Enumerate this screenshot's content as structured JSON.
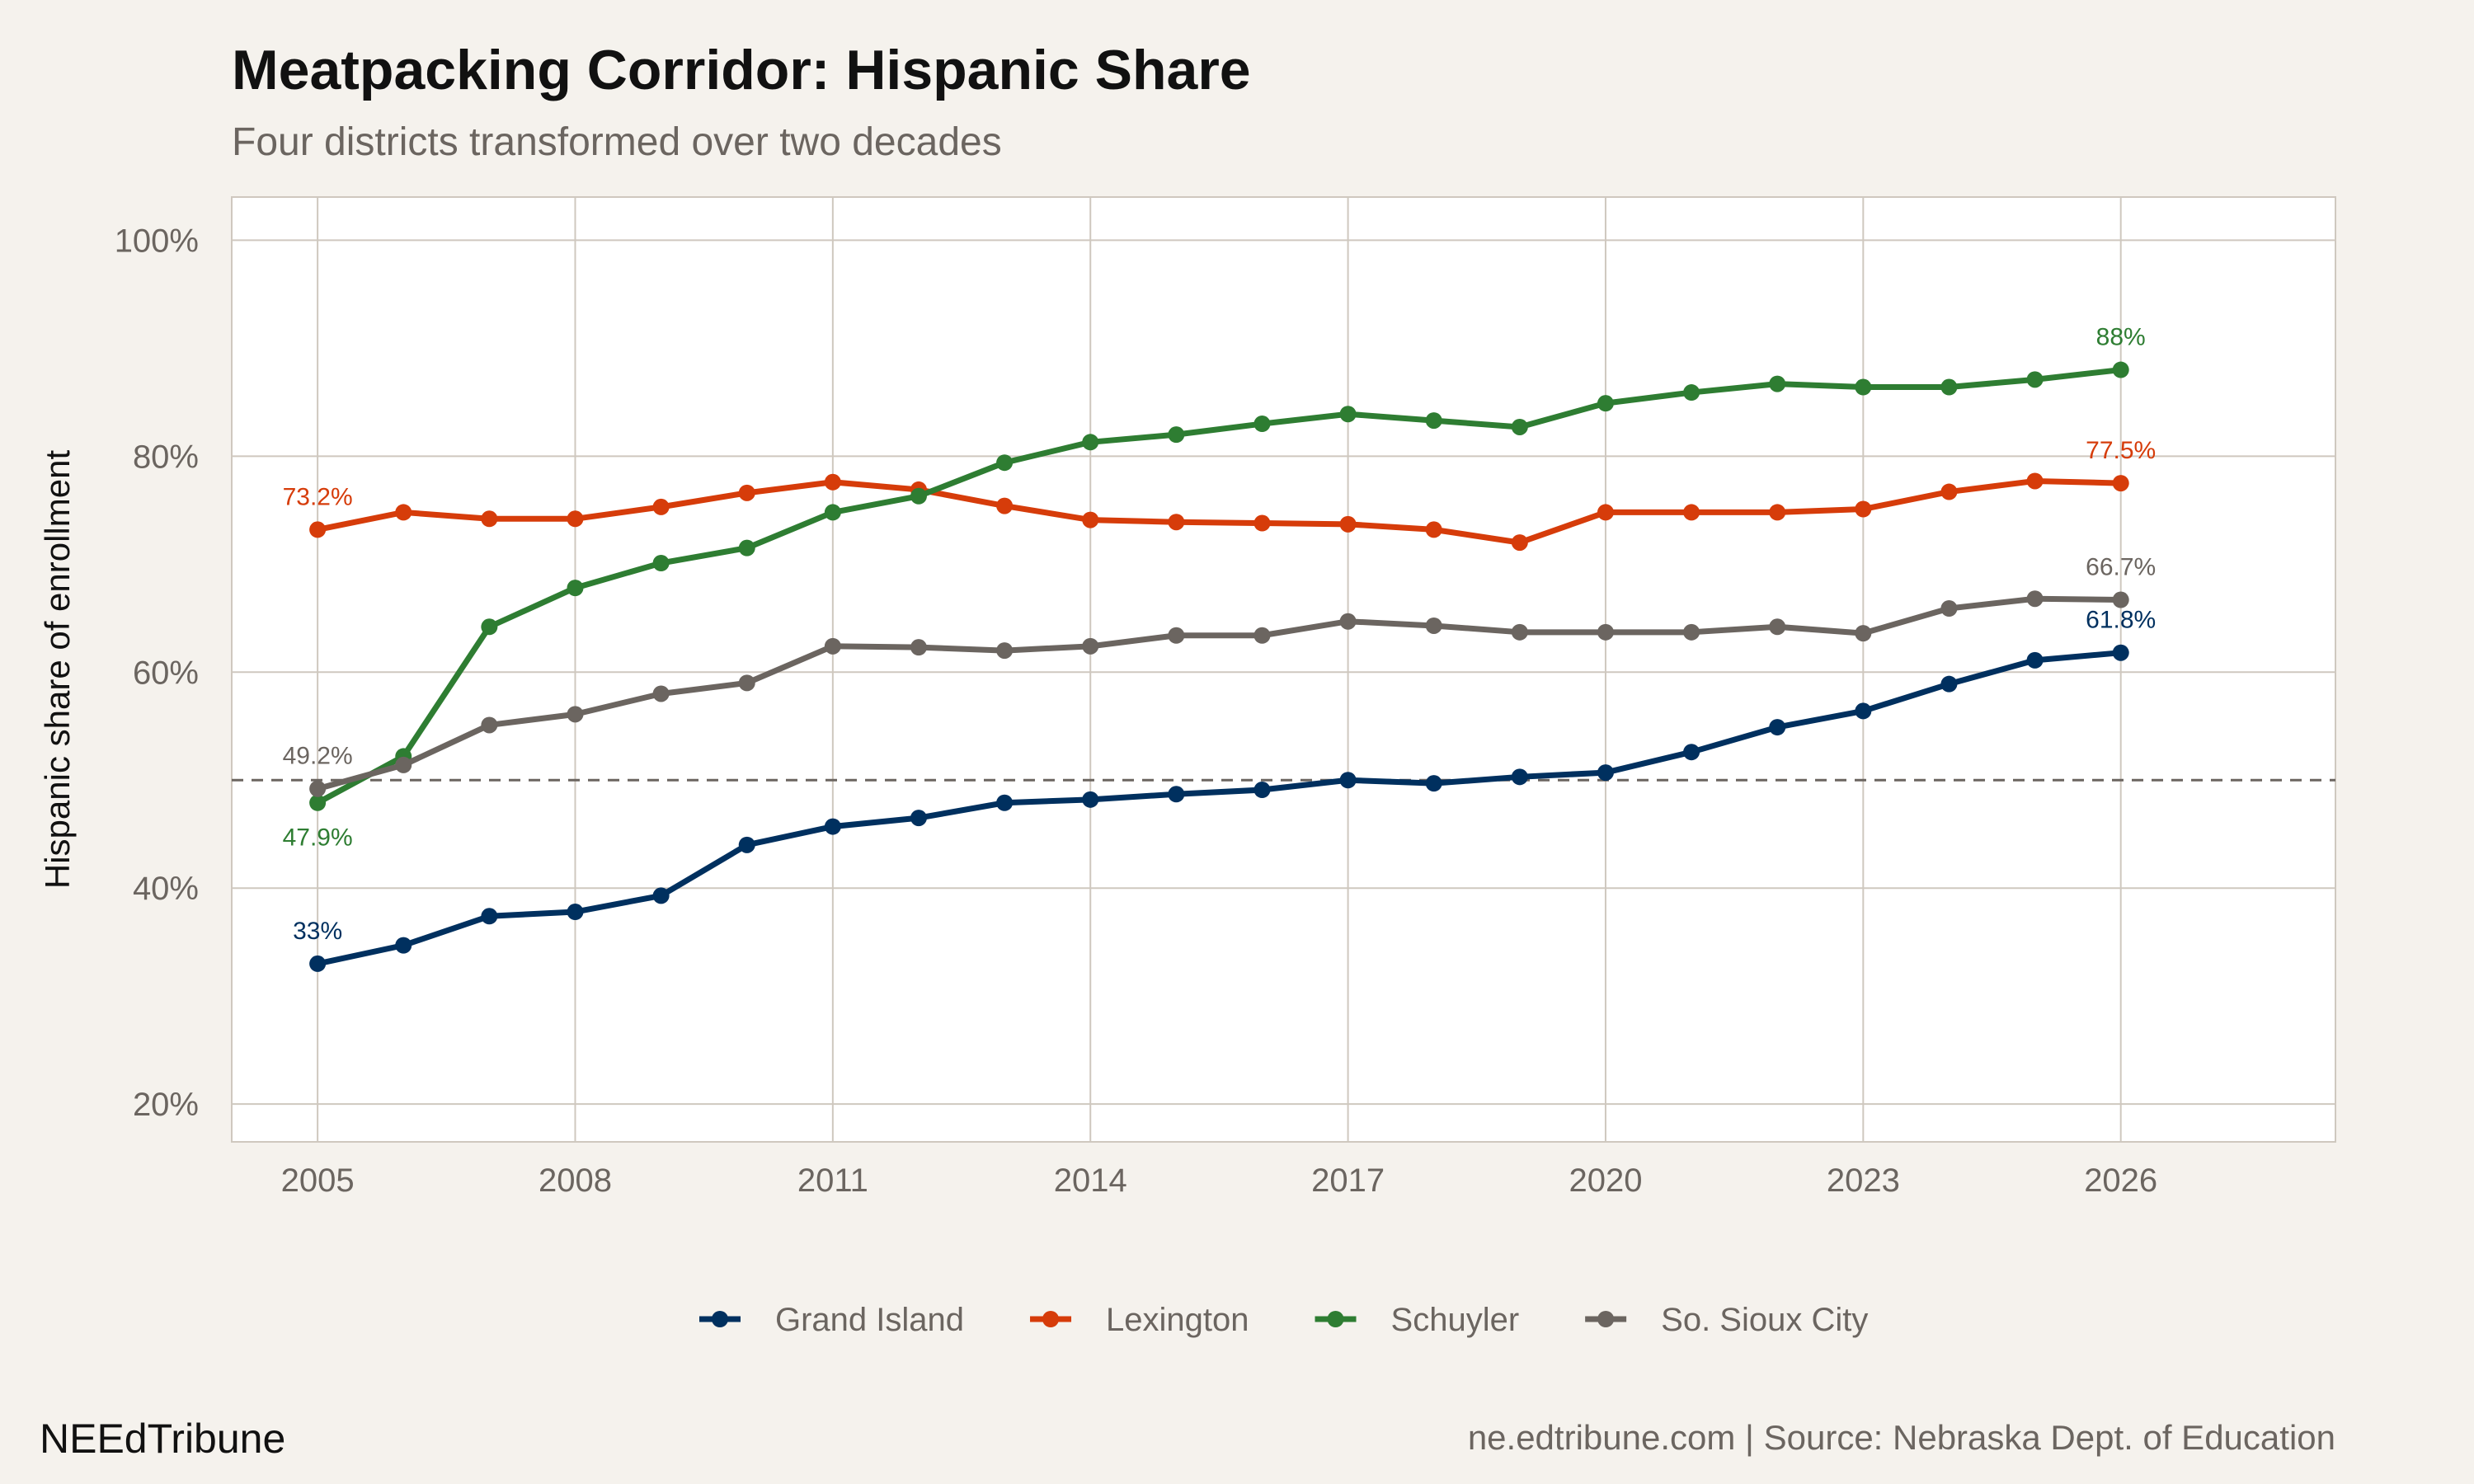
{
  "title": "Meatpacking Corridor: Hispanic Share",
  "subtitle": "Four districts transformed over two decades",
  "brand": "NEEdTribune",
  "caption": "ne.edtribune.com | Source: Nebraska Dept. of Education",
  "colors": {
    "background": "#f5f2ed",
    "panel": "#ffffff",
    "grid": "#cfc8bf",
    "reference": "#6b6560"
  },
  "chart_data": {
    "type": "line",
    "xlabel": "",
    "ylabel": "Hispanic share of enrollment",
    "xlim": [
      2004,
      2028.5
    ],
    "ylim": [
      16.5,
      104
    ],
    "x_ticks": [
      2005,
      2008,
      2011,
      2014,
      2017,
      2020,
      2023,
      2026
    ],
    "y_ticks": [
      20,
      40,
      60,
      80,
      100
    ],
    "y_tick_labels": [
      "20%",
      "40%",
      "60%",
      "80%",
      "100%"
    ],
    "grid": true,
    "reference_line": {
      "y": 50,
      "style": "dashed"
    },
    "legend_placement": "bottom",
    "x": [
      2005,
      2006,
      2007,
      2008,
      2009,
      2010,
      2011,
      2012,
      2013,
      2014,
      2015,
      2016,
      2017,
      2018,
      2019,
      2020,
      2021,
      2022,
      2023,
      2024,
      2025,
      2026
    ],
    "series": [
      {
        "name": "Grand Island",
        "color": "#00305f",
        "start_label": "33%",
        "end_label": "61.8%",
        "values": [
          33,
          34.7,
          37.4,
          37.8,
          39.3,
          44.0,
          45.7,
          46.5,
          47.9,
          48.2,
          48.7,
          49.1,
          50.0,
          49.7,
          50.3,
          50.7,
          52.6,
          54.9,
          56.4,
          58.9,
          61.1,
          61.8
        ]
      },
      {
        "name": "Lexington",
        "color": "#d63c0a",
        "start_label": "73.2%",
        "end_label": "77.5%",
        "values": [
          73.2,
          74.8,
          74.2,
          74.2,
          75.3,
          76.6,
          77.6,
          76.9,
          75.4,
          74.1,
          73.9,
          73.8,
          73.7,
          73.2,
          72.0,
          74.8,
          74.8,
          74.8,
          75.1,
          76.7,
          77.7,
          77.5
        ]
      },
      {
        "name": "Schuyler",
        "color": "#2e7d32",
        "start_label": "47.9%",
        "end_label": "88%",
        "values": [
          47.9,
          52.2,
          64.2,
          67.8,
          70.1,
          71.5,
          74.8,
          76.3,
          79.4,
          81.3,
          82.0,
          83.0,
          83.9,
          83.3,
          82.7,
          84.9,
          85.9,
          86.7,
          86.4,
          86.4,
          87.1,
          88.0
        ]
      },
      {
        "name": "So. Sioux City",
        "color": "#6b6560",
        "start_label": "49.2%",
        "end_label": "66.7%",
        "values": [
          49.2,
          51.4,
          55.1,
          56.1,
          58.0,
          59.0,
          62.4,
          62.3,
          62.0,
          62.4,
          63.4,
          63.4,
          64.7,
          64.3,
          63.7,
          63.7,
          63.7,
          64.2,
          63.6,
          65.9,
          66.8,
          66.7
        ]
      }
    ]
  }
}
